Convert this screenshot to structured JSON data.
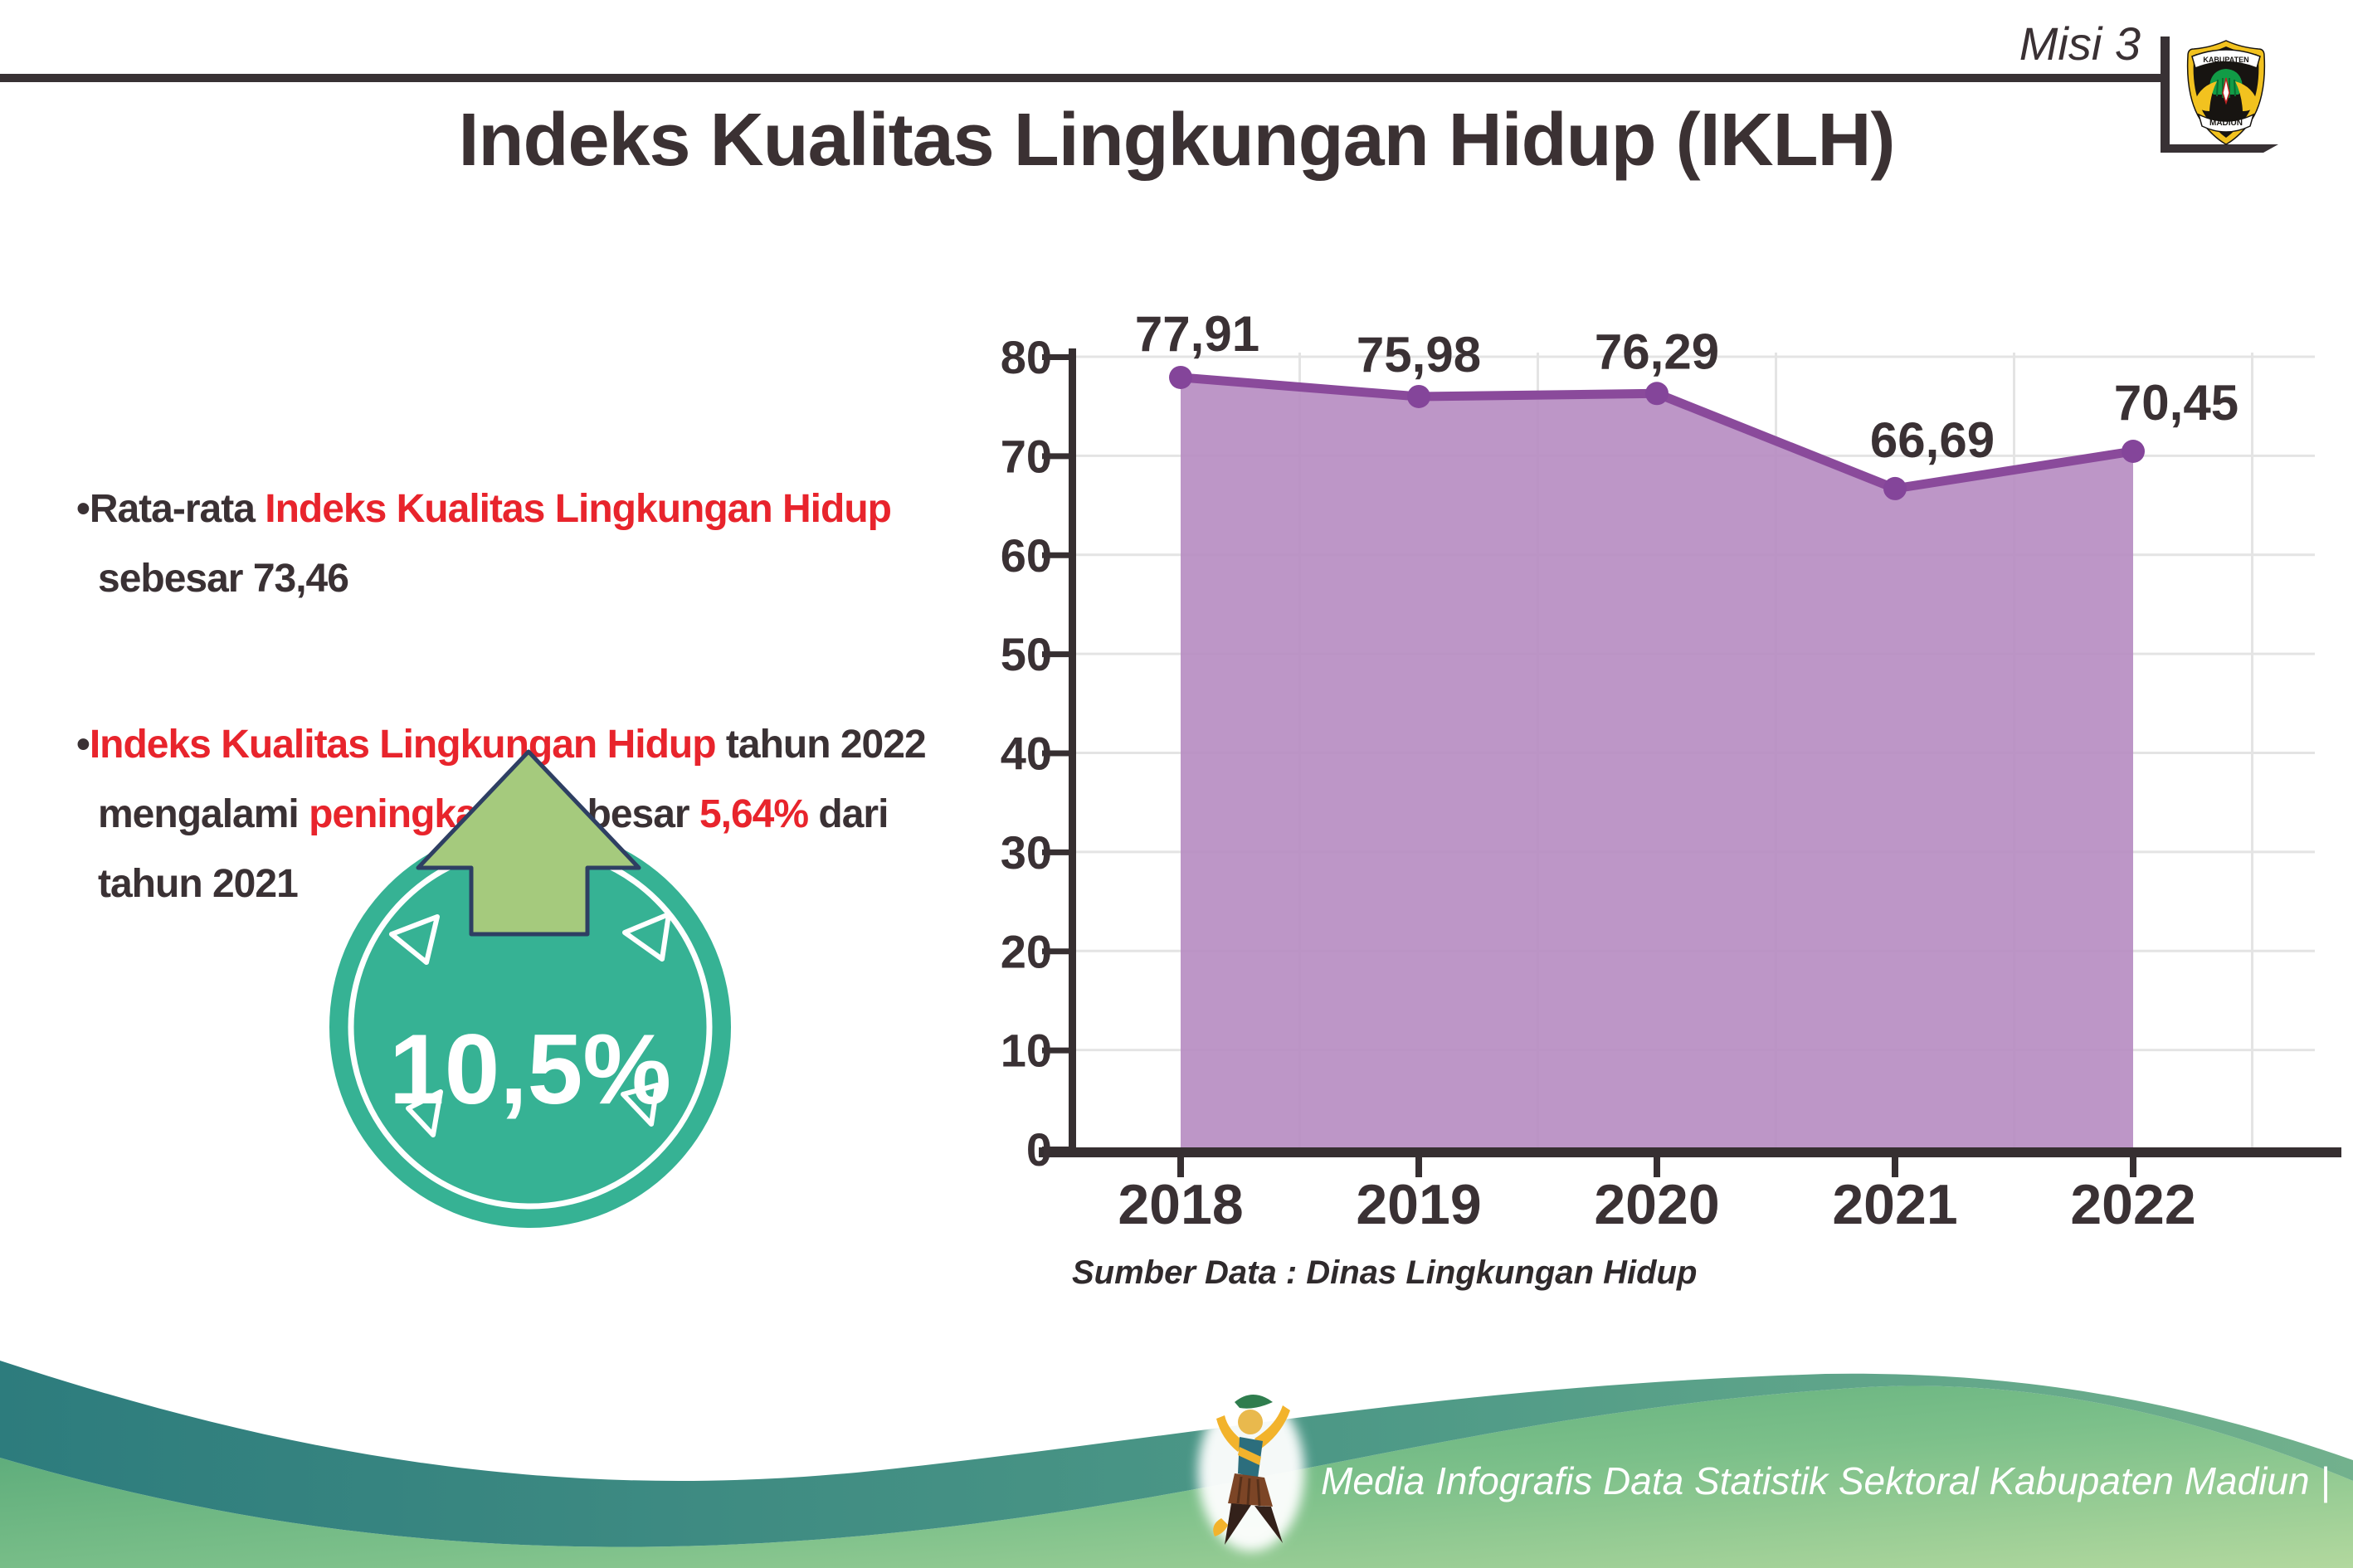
{
  "header": {
    "corner_label": "Misi 3",
    "title": "Indeks Kualitas Lingkungan Hidup (IKLH)",
    "logo": {
      "top_text": "KABUPATEN",
      "bottom_text": "MADIUN"
    }
  },
  "bullets": [
    {
      "bullet": "•",
      "lines": [
        {
          "segments": [
            {
              "text": "Rata-rata ",
              "color": "dark"
            },
            {
              "text": "Indeks Kualitas Lingkungan Hidup",
              "color": "red"
            }
          ]
        },
        {
          "segments": [
            {
              "text": "sebesar 73,46",
              "color": "dark"
            }
          ]
        }
      ]
    },
    {
      "bullet": "•",
      "lines": [
        {
          "segments": [
            {
              "text": "Indeks Kualitas Lingkungan Hidup",
              "color": "red"
            },
            {
              "text": " tahun 2022",
              "color": "dark"
            }
          ]
        },
        {
          "segments": [
            {
              "text": "mengalami ",
              "color": "dark"
            },
            {
              "text": "peningkatan",
              "color": "red"
            },
            {
              "text": " sebesar ",
              "color": "dark"
            },
            {
              "text": "5,64%",
              "color": "red"
            },
            {
              "text": " dari",
              "color": "dark"
            }
          ]
        },
        {
          "segments": [
            {
              "text": "tahun 2021",
              "color": "dark"
            }
          ]
        }
      ]
    }
  ],
  "badge": {
    "value": "10,5%"
  },
  "chart_data": {
    "type": "area",
    "title": "",
    "categories": [
      "2018",
      "2019",
      "2020",
      "2021",
      "2022"
    ],
    "values": [
      77.91,
      75.98,
      76.29,
      66.69,
      70.45
    ],
    "value_labels": [
      "77,91",
      "75,98",
      "76,29",
      "66,69",
      "70,45"
    ],
    "xlabel": "",
    "ylabel": "",
    "ylim": [
      0,
      80
    ],
    "ytick_step": 10,
    "grid": true,
    "legend": false,
    "line_color": "#8a4a9b",
    "fill_color": "#b78dc2",
    "marker_color": "#84459a",
    "source": "Sumber Data : Dinas Lingkungan Hidup"
  },
  "footer": {
    "credit": "Media Infografis Data Statistik Sektoral Kabupaten Madiun |"
  },
  "colors": {
    "text_dark": "#3a3134",
    "text_red": "#e8242c",
    "axis": "#362f31",
    "grid": "#e4e4e4",
    "badge_teal": "#36b294",
    "arrow_green": "#a5ca7d",
    "arrow_outline": "#2e3f63",
    "wave_teal_start": "#2d7c7d",
    "wave_teal_end": "#72b18d",
    "wave_green_start": "#4fa374",
    "wave_green_end": "#b2d89e"
  }
}
